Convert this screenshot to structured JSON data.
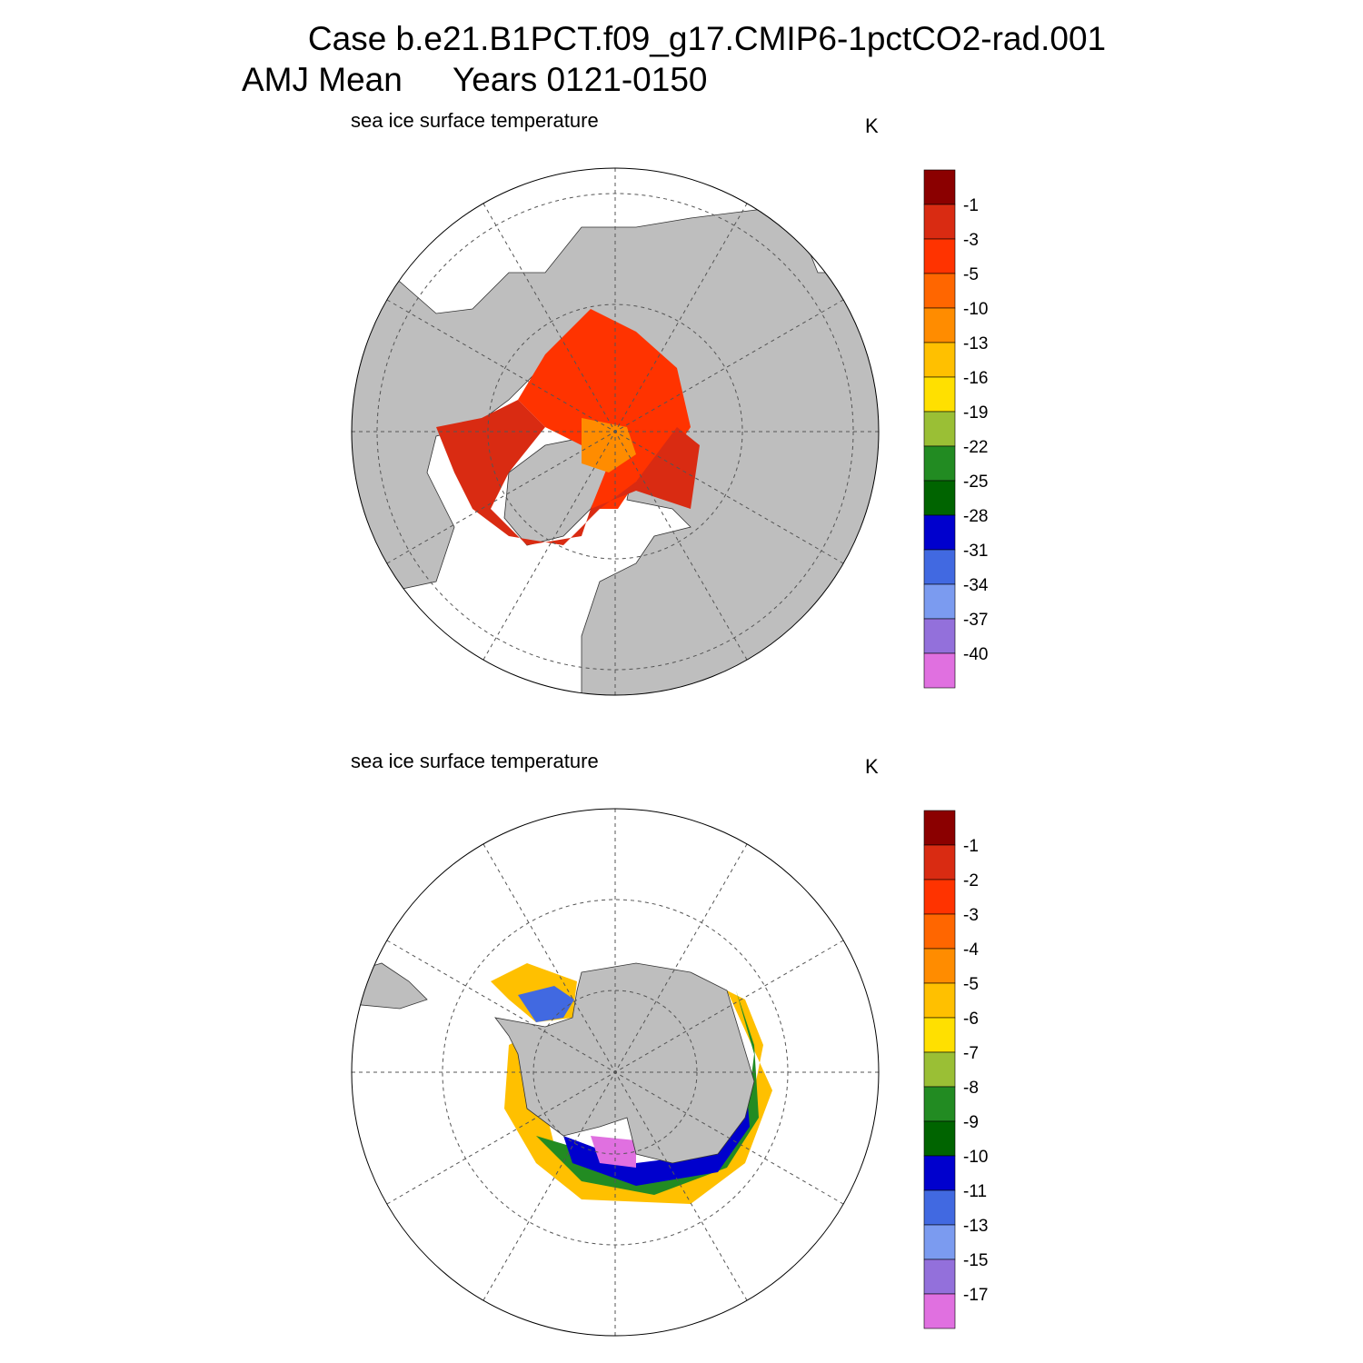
{
  "header": {
    "title": "Case b.e21.B1PCT.f09_g17.CMIP6-1pctCO2-rad.001",
    "season": "AMJ Mean",
    "years": "Years 0121-0150"
  },
  "panels": [
    {
      "title": "sea ice surface temperature",
      "units": "K",
      "colorbar": {
        "colors": [
          "#8b0000",
          "#d92b12",
          "#ff3300",
          "#ff6600",
          "#ff8c00",
          "#ffc000",
          "#ffe000",
          "#9abf35",
          "#228b22",
          "#006400",
          "#0000cd",
          "#4169e1",
          "#7b9bf0",
          "#9370db",
          "#e070e0"
        ],
        "labels": [
          -1,
          -3,
          -5,
          -10,
          -13,
          -16,
          -19,
          -22,
          -25,
          -28,
          -31,
          -34,
          -37,
          -40
        ]
      }
    },
    {
      "title": "sea ice surface temperature",
      "units": "K",
      "colorbar": {
        "colors": [
          "#8b0000",
          "#d92b12",
          "#ff3300",
          "#ff6600",
          "#ff8c00",
          "#ffc000",
          "#ffe000",
          "#9abf35",
          "#228b22",
          "#006400",
          "#0000cd",
          "#4169e1",
          "#7b9bf0",
          "#9370db",
          "#e070e0"
        ],
        "labels": [
          -1,
          -2,
          -3,
          -4,
          -5,
          -6,
          -7,
          -8,
          -9,
          -10,
          -11,
          -13,
          -15,
          -17
        ]
      }
    }
  ]
}
